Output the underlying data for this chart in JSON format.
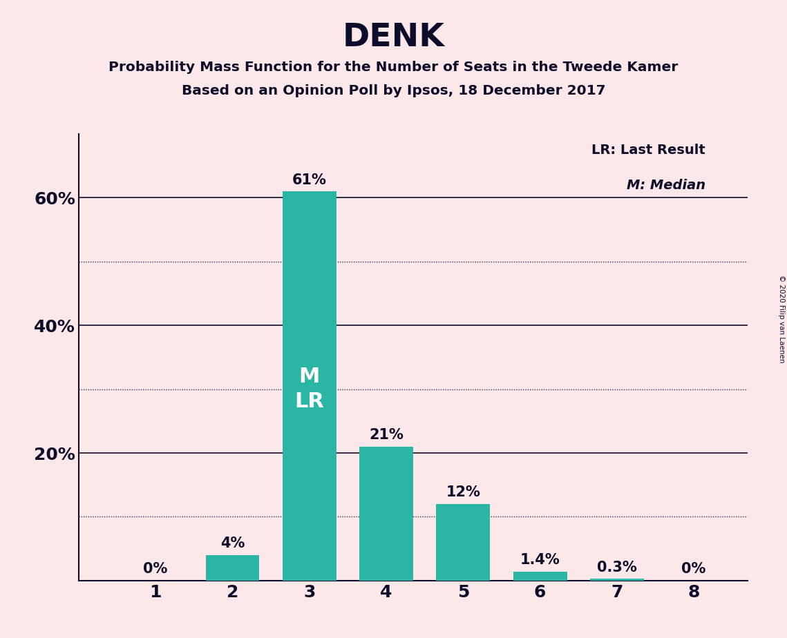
{
  "title": "DENK",
  "subtitle1": "Probability Mass Function for the Number of Seats in the Tweede Kamer",
  "subtitle2": "Based on an Opinion Poll by Ipsos, 18 December 2017",
  "copyright": "© 2020 Filip van Laenen",
  "categories": [
    1,
    2,
    3,
    4,
    5,
    6,
    7,
    8
  ],
  "values": [
    0.0,
    4.0,
    61.0,
    21.0,
    12.0,
    1.4,
    0.3,
    0.0
  ],
  "labels": [
    "0%",
    "4%",
    "61%",
    "21%",
    "12%",
    "1.4%",
    "0.3%",
    "0%"
  ],
  "bar_color": "#2ab5a5",
  "background_color": "#fce8e8",
  "text_color": "#0d0d2b",
  "median_bar": 3,
  "last_result_bar": 3,
  "label_lr": "LR: Last Result",
  "label_m": "M: Median",
  "ylim": [
    0,
    70
  ],
  "ytick_positions": [
    20,
    40,
    60
  ],
  "ytick_labels": [
    "20%",
    "40%",
    "60%"
  ],
  "dotted_lines": [
    10,
    30,
    50
  ],
  "solid_lines": [
    20,
    40,
    60
  ]
}
